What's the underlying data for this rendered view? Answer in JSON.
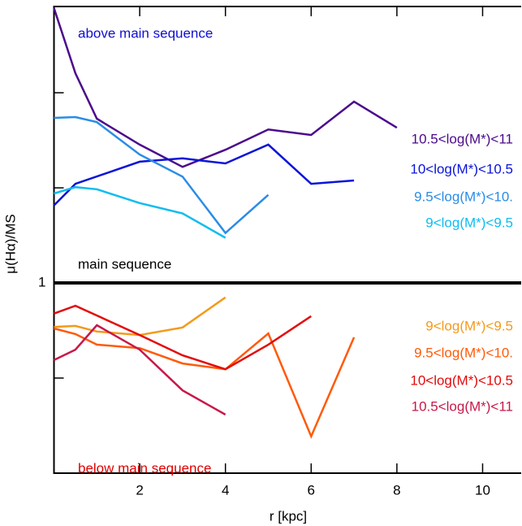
{
  "chart_data": {
    "type": "line",
    "log_y": true,
    "xlabel": "r [kpc]",
    "ylabel": "μ(Hα)/MS",
    "xlim": [
      0,
      10.9
    ],
    "xticks": [
      2,
      4,
      6,
      8,
      10
    ],
    "ylim": [
      0.25,
      7.5
    ],
    "yticks": [
      {
        "value": 0.5,
        "label": null
      },
      1,
      {
        "value": 2,
        "label": null
      },
      {
        "value": 4,
        "label": null
      }
    ],
    "reference_line": 1,
    "annotations": [
      {
        "text": "above main sequence",
        "color": "#1010d0"
      },
      {
        "text": "main sequence",
        "color": "#000000"
      },
      {
        "text": "below main sequence",
        "color": "#e00000"
      }
    ],
    "series": [
      {
        "name": "10.5<log(M*)<11",
        "color": "#4b0a8c",
        "x": [
          0,
          0.5,
          1,
          2,
          3,
          4,
          5,
          6,
          7,
          8
        ],
        "values": [
          7.41,
          4.61,
          3.31,
          2.74,
          2.33,
          2.64,
          3.06,
          2.94,
          3.75,
          3.1
        ]
      },
      {
        "name": "10<log(M*)<10.5",
        "color": "#0a14d8",
        "x": [
          0,
          0.5,
          2,
          3,
          4,
          5,
          6,
          7
        ],
        "values": [
          1.76,
          2.06,
          2.42,
          2.48,
          2.39,
          2.74,
          2.06,
          2.11
        ]
      },
      {
        "name": "9.5<log(M*)<10.",
        "color": "#2a8ce6",
        "x": [
          0,
          0.5,
          1,
          2,
          3,
          4,
          5
        ],
        "values": [
          3.33,
          3.35,
          3.23,
          2.55,
          2.17,
          1.44,
          1.9
        ]
      },
      {
        "name": "9<log(M*)<9.5",
        "color": "#10bcf0",
        "x": [
          0,
          0.5,
          1,
          2,
          3,
          4
        ],
        "values": [
          1.92,
          2.01,
          1.98,
          1.79,
          1.66,
          1.39
        ]
      },
      {
        "name": "9<log(M*)<9.5",
        "color": "#f39a1c",
        "x": [
          0,
          0.5,
          1,
          2,
          3,
          4
        ],
        "values": [
          0.726,
          0.731,
          0.702,
          0.684,
          0.723,
          0.9
        ]
      },
      {
        "name": "9.5<log(M*)<10.",
        "color": "#ff5a08",
        "x": [
          0,
          0.5,
          1,
          2,
          3,
          4,
          5,
          6,
          7
        ],
        "values": [
          0.718,
          0.689,
          0.638,
          0.622,
          0.556,
          0.533,
          0.692,
          0.327,
          0.673
        ]
      },
      {
        "name": "10<log(M*)<10.5",
        "color": "#e40a0a",
        "x": [
          0,
          0.5,
          2,
          3,
          4,
          5,
          6
        ],
        "values": [
          0.8,
          0.847,
          0.684,
          0.59,
          0.533,
          0.638,
          0.785
        ]
      },
      {
        "name": "10.5<log(M*)<11",
        "color": "#c8184a",
        "x": [
          0,
          0.5,
          1,
          2,
          3,
          4
        ],
        "values": [
          0.57,
          0.615,
          0.735,
          0.615,
          0.457,
          0.383
        ]
      }
    ]
  }
}
